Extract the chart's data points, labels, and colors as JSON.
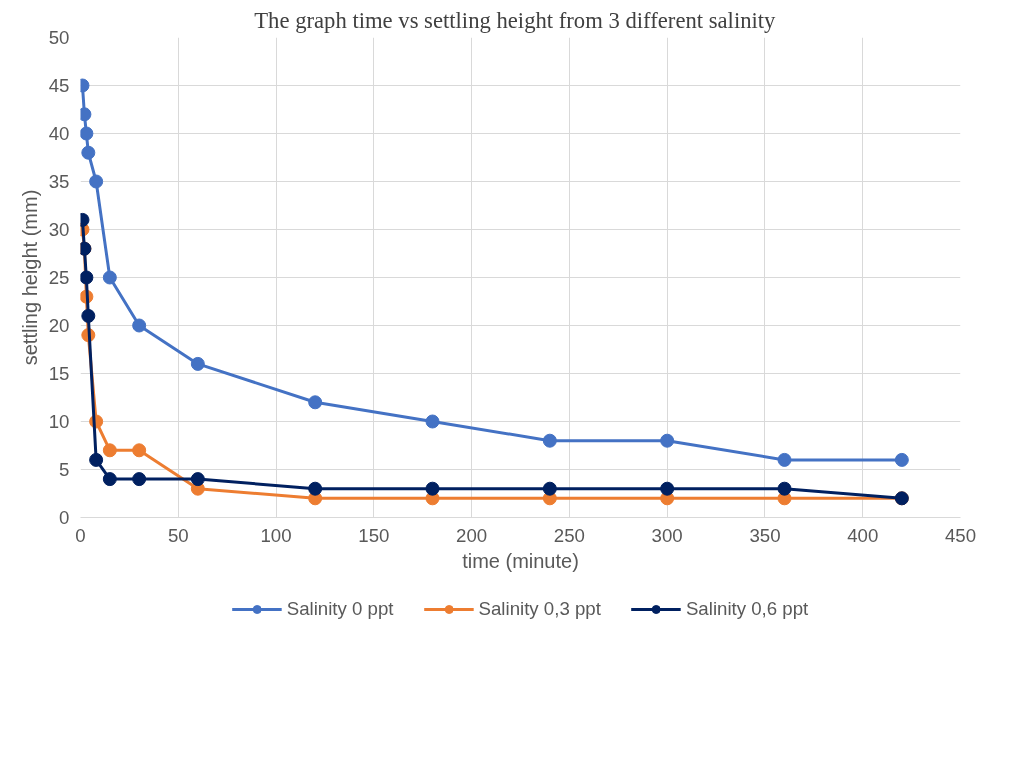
{
  "chart_data": {
    "type": "line",
    "title": "The graph time vs  settling height  from 3 different salinity",
    "xlabel": "time (minute)",
    "ylabel": "settling height (mm)",
    "x": [
      1,
      2,
      3,
      4,
      8,
      15,
      30,
      60,
      120,
      180,
      240,
      300,
      360,
      420
    ],
    "series": [
      {
        "name": "Salinity 0 ppt",
        "color": "#4472c4",
        "values": [
          45,
          42,
          40,
          38,
          35,
          25,
          20,
          16,
          12,
          10,
          8,
          8,
          6,
          6
        ]
      },
      {
        "name": "Salinity 0,3 ppt",
        "color": "#ed7d31",
        "values": [
          30,
          28,
          23,
          19,
          10,
          7,
          7,
          3,
          2,
          2,
          2,
          2,
          2,
          2
        ]
      },
      {
        "name": "Salinity 0,6 ppt",
        "color": "#002060",
        "values": [
          31,
          28,
          25,
          21,
          6,
          4,
          4,
          4,
          3,
          3,
          3,
          3,
          3,
          2
        ]
      }
    ],
    "xlim": [
      0,
      450
    ],
    "xticks": [
      0,
      50,
      100,
      150,
      200,
      250,
      300,
      350,
      400,
      450
    ],
    "ylim": [
      0,
      50
    ],
    "yticks": [
      0,
      5,
      10,
      15,
      20,
      25,
      30,
      35,
      40,
      45,
      50
    ],
    "grid": true,
    "legend": "bottom",
    "marker": "circle",
    "line_style": "solid"
  }
}
